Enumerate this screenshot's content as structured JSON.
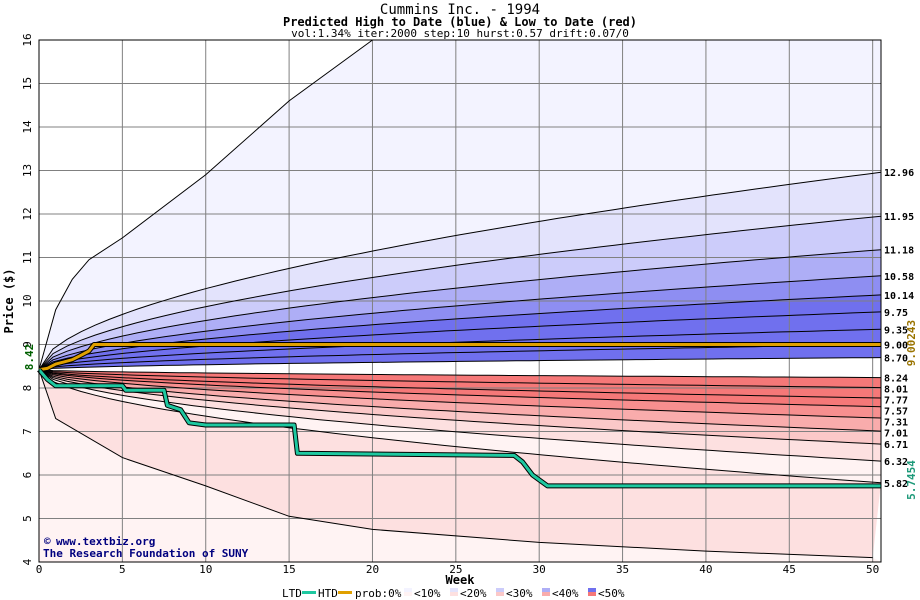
{
  "title": "Cummins Inc. - 1994",
  "subtitle": "Predicted High to Date (blue) &  Low to Date (red)",
  "params": "vol:1.34% iter:2000 step:10 hurst:0.57 drift:0.07/0",
  "credit": {
    "url": "www.textbiz.org",
    "org": "The Research Foundation of SUNY"
  },
  "legend": {
    "ltd": "LTD",
    "htd": "HTD",
    "prob": "prob:0%",
    "bins": [
      "<10%",
      "<20%",
      "<30%",
      "<40%",
      "<50%"
    ]
  },
  "colors": {
    "ltd": "#1ec8a0",
    "htd": "#e0a000",
    "blue_bands": [
      "#f3f3ff",
      "#e3e3fc",
      "#ccccfa",
      "#aeaef6",
      "#8e8ef2",
      "#7070ee"
    ],
    "red_bands": [
      "#fff3f3",
      "#fde0e0",
      "#fbc8c8",
      "#f9acac",
      "#f78f8f",
      "#f57878"
    ],
    "grid": "#808080",
    "axis_left_label": "#006000",
    "axis_right_high": "#9a7400",
    "axis_right_low": "#1e9a7a"
  },
  "chart_data": {
    "type": "area",
    "title": "Cummins Inc. - 1994",
    "xlabel": "Week",
    "ylabel": "Price ($)",
    "xlim": [
      0,
      50.5
    ],
    "ylim": [
      4,
      16
    ],
    "x_ticks": [
      0,
      5,
      10,
      15,
      20,
      25,
      30,
      35,
      40,
      45,
      50
    ],
    "y_ticks": [
      4,
      5,
      6,
      7,
      8,
      9,
      10,
      11,
      12,
      13,
      14,
      15,
      16
    ],
    "grid": true,
    "start_price": 8.42,
    "start_label": "8.42",
    "final_htd": "9.00243",
    "final_ltd": "5.7454",
    "high_quantiles_end": [
      12.96,
      11.95,
      11.18,
      10.58,
      10.14,
      9.75,
      9.35,
      9.0,
      8.7
    ],
    "low_quantiles_end": [
      8.24,
      8.01,
      7.77,
      7.57,
      7.31,
      7.01,
      6.71,
      6.32,
      5.82
    ],
    "right_labels": [
      "12.96",
      "11.95",
      "11.18",
      "10.58",
      "10.14",
      "9.75",
      "9.35",
      "9.00",
      "8.70",
      "8.24",
      "8.01",
      "7.77",
      "7.57",
      "7.31",
      "7.01",
      "6.71",
      "6.32",
      "5.82"
    ],
    "outer_high_envelope": [
      [
        0,
        8.42
      ],
      [
        1,
        9.8
      ],
      [
        2,
        10.5
      ],
      [
        3,
        10.95
      ],
      [
        5,
        11.45
      ],
      [
        10,
        12.9
      ],
      [
        15,
        14.6
      ],
      [
        20,
        16.0
      ]
    ],
    "outer_low_envelope": [
      [
        0,
        8.42
      ],
      [
        1,
        7.3
      ],
      [
        5,
        6.4
      ],
      [
        10,
        5.75
      ],
      [
        15,
        5.05
      ],
      [
        20,
        4.75
      ],
      [
        30,
        4.45
      ],
      [
        40,
        4.25
      ],
      [
        50,
        4.1
      ]
    ],
    "htd_series": [
      [
        0,
        8.42
      ],
      [
        0.5,
        8.45
      ],
      [
        1,
        8.55
      ],
      [
        1.5,
        8.6
      ],
      [
        2,
        8.65
      ],
      [
        2.5,
        8.75
      ],
      [
        3,
        8.85
      ],
      [
        3.3,
        9.0
      ],
      [
        50.5,
        9.0
      ]
    ],
    "ltd_series": [
      [
        0,
        8.42
      ],
      [
        0.5,
        8.2
      ],
      [
        1,
        8.05
      ],
      [
        5,
        8.05
      ],
      [
        5.2,
        7.95
      ],
      [
        7.5,
        7.95
      ],
      [
        7.7,
        7.6
      ],
      [
        8.5,
        7.5
      ],
      [
        9,
        7.2
      ],
      [
        10,
        7.15
      ],
      [
        15.3,
        7.15
      ],
      [
        15.5,
        6.5
      ],
      [
        28.5,
        6.45
      ],
      [
        29,
        6.3
      ],
      [
        29.6,
        6.0
      ],
      [
        30.5,
        5.75
      ],
      [
        50.5,
        5.75
      ]
    ]
  }
}
